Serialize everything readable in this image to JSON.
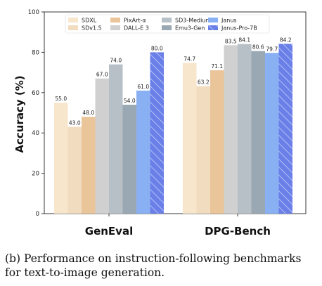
{
  "chart_data": {
    "type": "bar",
    "categories": [
      "GenEval",
      "DPG-Bench"
    ],
    "ylabel": "Accuracy (%)",
    "xlabel": "",
    "ylim": [
      0,
      100
    ],
    "yticks": [
      0,
      20,
      40,
      60,
      80,
      100
    ],
    "grid": false,
    "legend_position": "top-center",
    "legend_columns": 4,
    "series": [
      {
        "name": "SDXL",
        "color": "#f7e6cc",
        "values": [
          55.0,
          74.7
        ],
        "labels": [
          "55.0",
          "74.7"
        ]
      },
      {
        "name": "SDv1.5",
        "color": "#f2dcc0",
        "values": [
          43.0,
          63.2
        ],
        "labels": [
          "43.0",
          "63.2"
        ]
      },
      {
        "name": "PixArt-α",
        "color": "#ebc59a",
        "values": [
          48.0,
          71.1
        ],
        "labels": [
          "48.0",
          "71.1"
        ]
      },
      {
        "name": "DALL-E 3",
        "color": "#d0d0d0",
        "values": [
          67.0,
          83.5
        ],
        "labels": [
          "67.0",
          "83.5"
        ]
      },
      {
        "name": "SD3-Medium",
        "color": "#b7c0c7",
        "values": [
          74.0,
          84.1
        ],
        "labels": [
          "74.0",
          "84.1"
        ]
      },
      {
        "name": "Emu3-Gen",
        "color": "#9aa8b3",
        "values": [
          54.0,
          80.6
        ],
        "labels": [
          "54.0",
          "80.6"
        ]
      },
      {
        "name": "Janus",
        "color": "#8ab0f4",
        "values": [
          61.0,
          79.7
        ],
        "labels": [
          "61.0",
          "79.7"
        ]
      },
      {
        "name": "Janus-Pro-7B",
        "color": "#6a80e8",
        "hatch": true,
        "values": [
          80.0,
          84.2
        ],
        "labels": [
          "80.0",
          "84.2"
        ]
      }
    ]
  },
  "caption": {
    "label": "(b)",
    "text": "Performance on instruction-following benchmarks for text-to-image generation."
  }
}
